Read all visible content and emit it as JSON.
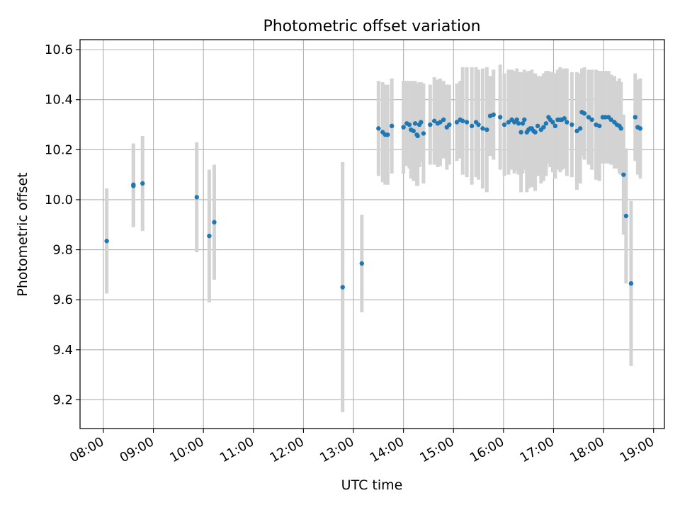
{
  "chart_data": {
    "type": "scatter",
    "title": "Photometric offset variation",
    "xlabel": "UTC time",
    "ylabel": "Photometric offset",
    "x_unit": "hours UTC",
    "xlim": [
      "07:32",
      "19:13"
    ],
    "ylim": [
      9.085,
      10.64
    ],
    "x_tick_labels": [
      "08:00",
      "09:00",
      "10:00",
      "11:00",
      "12:00",
      "13:00",
      "14:00",
      "15:00",
      "16:00",
      "17:00",
      "18:00",
      "19:00"
    ],
    "y_ticks": [
      9.2,
      9.4,
      9.6,
      9.8,
      10.0,
      10.2,
      10.4,
      10.6
    ],
    "y_tick_labels": [
      "9.2",
      "9.4",
      "9.6",
      "9.8",
      "10.0",
      "10.2",
      "10.4",
      "10.6"
    ],
    "grid": true,
    "colors": {
      "point": "#1f77b4",
      "errorbar": "#d3d3d3",
      "grid": "#b0b0b0"
    },
    "series": [
      {
        "x": [
          "08:04",
          "08:36",
          "08:36",
          "08:47",
          "09:52",
          "10:07",
          "10:13",
          "12:47",
          "13:10",
          "13:30",
          "13:35",
          "13:38",
          "13:41",
          "13:46",
          "14:00",
          "14:04",
          "14:07",
          "14:09",
          "14:12",
          "14:14",
          "14:16",
          "14:17",
          "14:19",
          "14:21",
          "14:24",
          "14:32",
          "14:37",
          "14:41",
          "14:44",
          "14:48",
          "14:52",
          "14:55",
          "15:04",
          "15:08",
          "15:11",
          "15:16",
          "15:22",
          "15:27",
          "15:30",
          "15:35",
          "15:40",
          "15:44",
          "15:48",
          "15:56",
          "16:01",
          "16:06",
          "16:10",
          "16:13",
          "16:16",
          "16:18",
          "16:21",
          "16:23",
          "16:25",
          "16:28",
          "16:30",
          "16:32",
          "16:34",
          "16:36",
          "16:38",
          "16:41",
          "16:45",
          "16:48",
          "16:51",
          "16:54",
          "16:56",
          "16:59",
          "17:02",
          "17:05",
          "17:08",
          "17:10",
          "17:13",
          "17:16",
          "17:22",
          "17:28",
          "17:32",
          "17:34",
          "17:37",
          "17:42",
          "17:46",
          "17:51",
          "17:55",
          "17:59",
          "18:02",
          "18:06",
          "18:09",
          "18:13",
          "18:16",
          "18:19",
          "18:21",
          "18:24",
          "18:27",
          "18:33",
          "18:38",
          "18:41",
          "18:44"
        ],
        "y": [
          9.835,
          10.06,
          10.055,
          10.065,
          10.01,
          9.855,
          9.91,
          9.65,
          9.745,
          10.285,
          10.27,
          10.26,
          10.26,
          10.295,
          10.29,
          10.305,
          10.3,
          10.28,
          10.275,
          10.305,
          10.26,
          10.255,
          10.3,
          10.31,
          10.265,
          10.3,
          10.315,
          10.305,
          10.31,
          10.32,
          10.29,
          10.3,
          10.31,
          10.32,
          10.315,
          10.31,
          10.295,
          10.31,
          10.3,
          10.285,
          10.28,
          10.335,
          10.34,
          10.33,
          10.3,
          10.31,
          10.32,
          10.31,
          10.32,
          10.305,
          10.27,
          10.305,
          10.32,
          10.27,
          10.28,
          10.285,
          10.285,
          10.275,
          10.27,
          10.295,
          10.28,
          10.29,
          10.305,
          10.33,
          10.32,
          10.31,
          10.295,
          10.32,
          10.32,
          10.32,
          10.325,
          10.31,
          10.3,
          10.275,
          10.285,
          10.35,
          10.345,
          10.33,
          10.32,
          10.3,
          10.295,
          10.33,
          10.33,
          10.33,
          10.32,
          10.31,
          10.3,
          10.295,
          10.285,
          10.1,
          9.935,
          9.665,
          10.33,
          10.29,
          10.285
        ],
        "err": [
          0.21,
          0.165,
          0.165,
          0.19,
          0.22,
          0.265,
          0.23,
          0.5,
          0.195,
          0.19,
          0.2,
          0.2,
          0.2,
          0.19,
          0.185,
          0.17,
          0.175,
          0.195,
          0.2,
          0.17,
          0.205,
          0.2,
          0.17,
          0.16,
          0.2,
          0.16,
          0.175,
          0.175,
          0.175,
          0.155,
          0.17,
          0.16,
          0.155,
          0.155,
          0.215,
          0.22,
          0.235,
          0.22,
          0.22,
          0.24,
          0.25,
          0.16,
          0.18,
          0.21,
          0.205,
          0.21,
          0.2,
          0.205,
          0.205,
          0.205,
          0.24,
          0.2,
          0.2,
          0.24,
          0.235,
          0.23,
          0.235,
          0.225,
          0.235,
          0.2,
          0.215,
          0.215,
          0.21,
          0.185,
          0.19,
          0.2,
          0.21,
          0.2,
          0.21,
          0.2,
          0.2,
          0.215,
          0.21,
          0.235,
          0.22,
          0.175,
          0.185,
          0.19,
          0.2,
          0.22,
          0.22,
          0.185,
          0.185,
          0.185,
          0.18,
          0.185,
          0.175,
          0.19,
          0.185,
          0.24,
          0.27,
          0.33,
          0.175,
          0.19,
          0.2
        ]
      }
    ]
  }
}
